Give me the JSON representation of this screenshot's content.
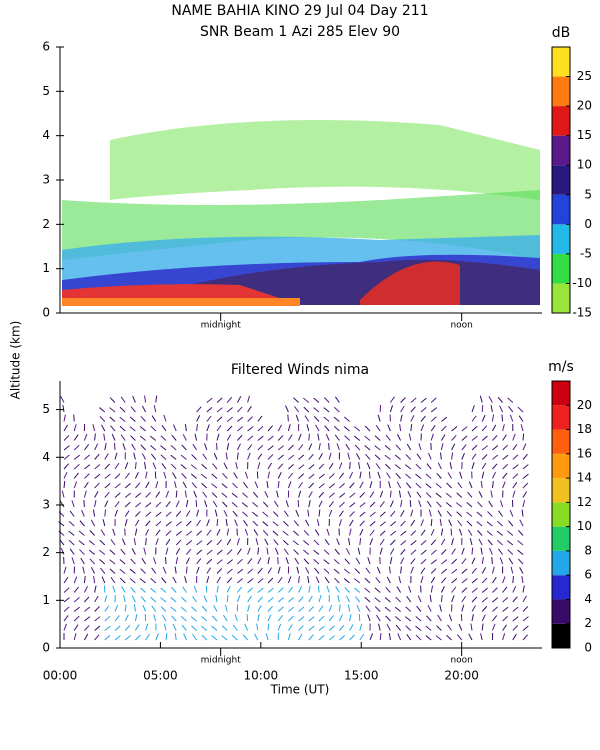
{
  "chart_data": [
    {
      "type": "heatmap",
      "title": "NAME BAHIA KINO  29 Jul 04 Day 211",
      "subtitle": "SNR Beam 1 Azi 285 Elev 90",
      "xlim": [
        0,
        24
      ],
      "ylim": [
        0,
        6
      ],
      "yticks": [
        0,
        1,
        2,
        3,
        4,
        5,
        6
      ],
      "annotations": [
        {
          "text": "midnight",
          "x": 8
        },
        {
          "text": "noon",
          "x": 20
        }
      ],
      "colorbar": {
        "label": "dB",
        "lim": [
          -15,
          30
        ],
        "ticks": [
          -15,
          -10,
          -5,
          0,
          5,
          10,
          15,
          20,
          25
        ],
        "colors": [
          "#99e63a",
          "#33dd44",
          "#22b8e8",
          "#2244dd",
          "#2a1880",
          "#5a1a8a",
          "#e01818",
          "#ff7a10",
          "#ffe020"
        ]
      }
    },
    {
      "type": "wind-barbs",
      "title": "Filtered Winds nima",
      "y_label": "Altitude (km)",
      "x_label": "Time (UT)",
      "xlim": [
        0,
        24
      ],
      "ylim": [
        0,
        5.6
      ],
      "yticks": [
        0,
        1,
        2,
        3,
        4,
        5
      ],
      "xticks": [
        {
          "value": 0,
          "label": "00:00"
        },
        {
          "value": 5,
          "label": "05:00"
        },
        {
          "value": 10,
          "label": "10:00"
        },
        {
          "value": 15,
          "label": "15:00"
        },
        {
          "value": 20,
          "label": "20:00"
        }
      ],
      "annotations": [
        {
          "text": "midnight",
          "x": 8
        },
        {
          "text": "noon",
          "x": 20
        }
      ],
      "colorbar": {
        "label": "m/s",
        "lim": [
          0,
          22
        ],
        "ticks": [
          0,
          2,
          4,
          6,
          8,
          10,
          12,
          14,
          16,
          18,
          20
        ],
        "colors": [
          "#000000",
          "#3a0a6a",
          "#2828d0",
          "#22a8e8",
          "#22cc66",
          "#88dd22",
          "#f0c020",
          "#ff9a10",
          "#ff6010",
          "#ee2020",
          "#cc0010"
        ]
      }
    }
  ]
}
